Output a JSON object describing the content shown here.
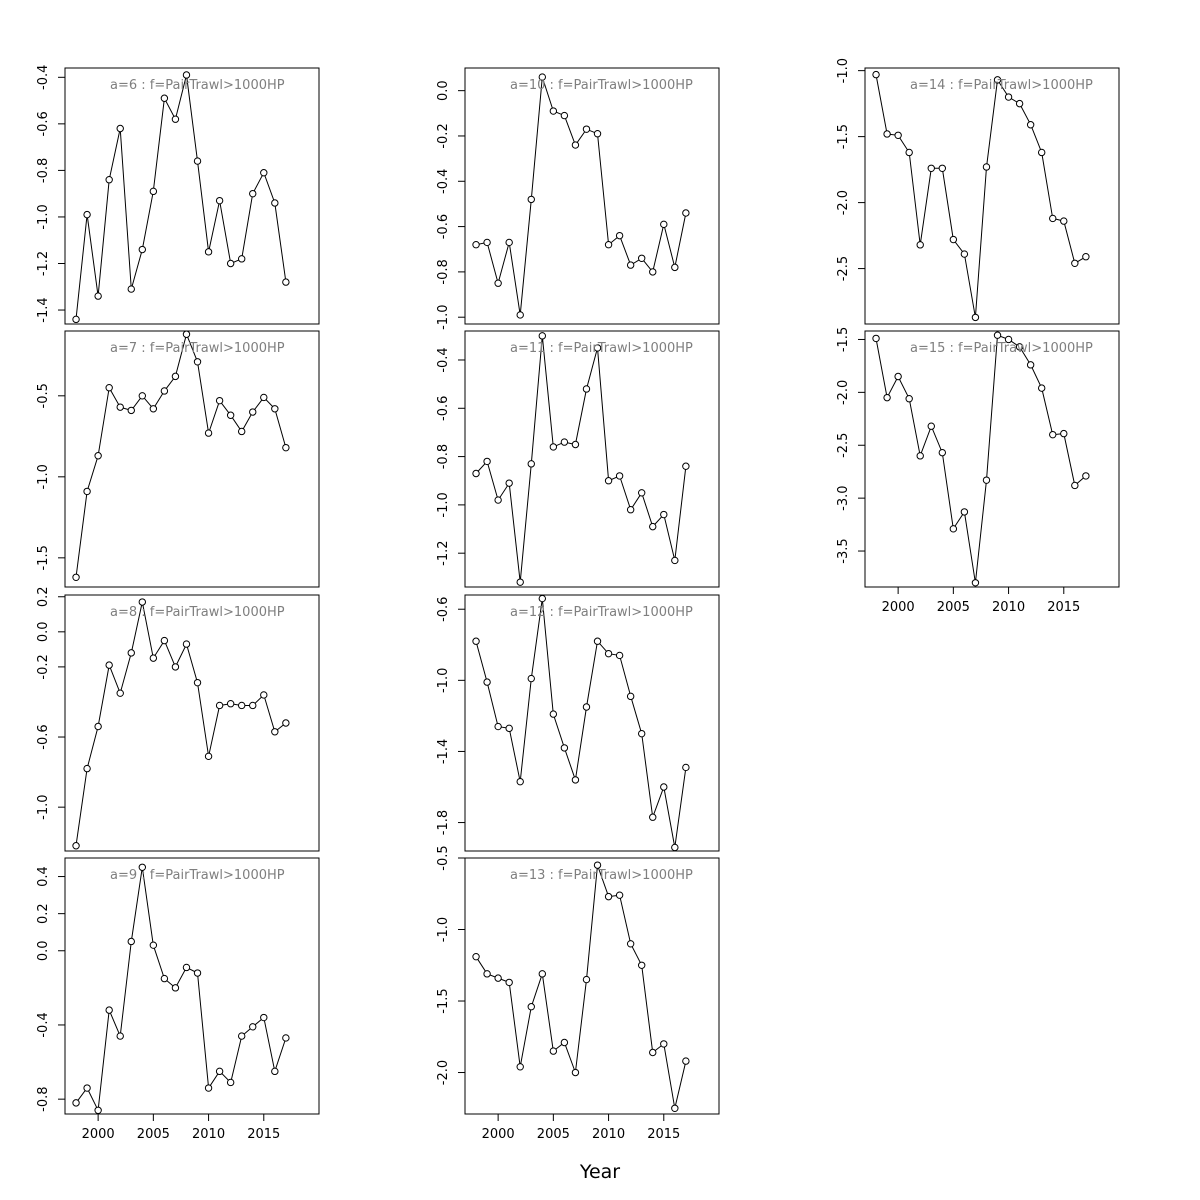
{
  "figure": {
    "xlabel": "Year"
  },
  "chart_data": [
    {
      "type": "line",
      "title": "a=6  :  f=PairTrawl>1000HP",
      "x": [
        1998,
        1999,
        2000,
        2001,
        2002,
        2003,
        2004,
        2005,
        2006,
        2007,
        2008,
        2009,
        2010,
        2011,
        2012,
        2013,
        2014,
        2015,
        2016,
        2017
      ],
      "y": [
        -1.44,
        -0.99,
        -1.34,
        -0.84,
        -0.62,
        -1.31,
        -1.14,
        -0.89,
        -0.49,
        -0.58,
        -0.39,
        -0.76,
        -1.15,
        -0.93,
        -1.2,
        -1.18,
        -0.9,
        -0.81,
        -0.94,
        -1.28
      ],
      "ylim": [
        -1.46,
        -0.36
      ],
      "yticks": [
        -1.4,
        -1.2,
        -1.0,
        -0.8,
        -0.6,
        -0.4
      ],
      "yticklabels": [
        "-1.4",
        "-1.2",
        "-1.0",
        "-0.8",
        "-0.6",
        "-0.4"
      ]
    },
    {
      "type": "line",
      "title": "a=7  :  f=PairTrawl>1000HP",
      "x": [
        1998,
        1999,
        2000,
        2001,
        2002,
        2003,
        2004,
        2005,
        2006,
        2007,
        2008,
        2009,
        2010,
        2011,
        2012,
        2013,
        2014,
        2015,
        2016,
        2017
      ],
      "y": [
        -1.62,
        -1.09,
        -0.87,
        -0.45,
        -0.57,
        -0.59,
        -0.5,
        -0.58,
        -0.47,
        -0.38,
        -0.12,
        -0.29,
        -0.73,
        -0.53,
        -0.62,
        -0.72,
        -0.6,
        -0.51,
        -0.58,
        -0.82
      ],
      "ylim": [
        -1.68,
        -0.1
      ],
      "yticks": [
        -1.5,
        -1.0,
        -0.5
      ],
      "yticklabels": [
        "-1.5",
        "-1.0",
        "-0.5"
      ]
    },
    {
      "type": "line",
      "title": "a=8  :  f=PairTrawl>1000HP",
      "x": [
        1998,
        1999,
        2000,
        2001,
        2002,
        2003,
        2004,
        2005,
        2006,
        2007,
        2008,
        2009,
        2010,
        2011,
        2012,
        2013,
        2014,
        2015,
        2016,
        2017
      ],
      "y": [
        -1.22,
        -0.78,
        -0.54,
        -0.19,
        -0.35,
        -0.12,
        0.17,
        -0.15,
        -0.05,
        -0.2,
        -0.07,
        -0.29,
        -0.71,
        -0.42,
        -0.41,
        -0.42,
        -0.42,
        -0.36,
        -0.57,
        -0.52
      ],
      "ylim": [
        -1.25,
        0.21
      ],
      "yticks": [
        -1.0,
        -0.6,
        -0.2,
        0.0,
        0.2
      ],
      "yticklabels": [
        "-1.0",
        "-0.6",
        "-0.2",
        "0.0",
        "0.2"
      ]
    },
    {
      "type": "line",
      "title": "a=9  :  f=PairTrawl>1000HP",
      "x": [
        1998,
        1999,
        2000,
        2001,
        2002,
        2003,
        2004,
        2005,
        2006,
        2007,
        2008,
        2009,
        2010,
        2011,
        2012,
        2013,
        2014,
        2015,
        2016,
        2017
      ],
      "y": [
        -0.82,
        -0.74,
        -0.86,
        -0.32,
        -0.46,
        0.05,
        0.45,
        0.03,
        -0.15,
        -0.2,
        -0.09,
        -0.12,
        -0.74,
        -0.65,
        -0.71,
        -0.46,
        -0.41,
        -0.36,
        -0.65,
        -0.47
      ],
      "ylim": [
        -0.88,
        0.5
      ],
      "yticks": [
        -0.8,
        -0.4,
        0.0,
        0.2,
        0.4
      ],
      "yticklabels": [
        "-0.8",
        "-0.4",
        "0.0",
        "0.2",
        "0.4"
      ]
    },
    {
      "type": "line",
      "title": "a=10  :  f=PairTrawl>1000HP",
      "x": [
        1998,
        1999,
        2000,
        2001,
        2002,
        2003,
        2004,
        2005,
        2006,
        2007,
        2008,
        2009,
        2010,
        2011,
        2012,
        2013,
        2014,
        2015,
        2016,
        2017
      ],
      "y": [
        -0.68,
        -0.67,
        -0.85,
        -0.67,
        -0.99,
        -0.48,
        0.06,
        -0.09,
        -0.11,
        -0.24,
        -0.17,
        -0.19,
        -0.68,
        -0.64,
        -0.77,
        -0.74,
        -0.8,
        -0.59,
        -0.78,
        -0.54
      ],
      "ylim": [
        -1.03,
        0.1
      ],
      "yticks": [
        -1.0,
        -0.8,
        -0.6,
        -0.4,
        -0.2,
        0.0
      ],
      "yticklabels": [
        "-1.0",
        "-0.8",
        "-0.6",
        "-0.4",
        "-0.2",
        "0.0"
      ]
    },
    {
      "type": "line",
      "title": "a=11  :  f=PairTrawl>1000HP",
      "x": [
        1998,
        1999,
        2000,
        2001,
        2002,
        2003,
        2004,
        2005,
        2006,
        2007,
        2008,
        2009,
        2010,
        2011,
        2012,
        2013,
        2014,
        2015,
        2016,
        2017
      ],
      "y": [
        -0.87,
        -0.82,
        -0.98,
        -0.91,
        -1.32,
        -0.83,
        -0.3,
        -0.76,
        -0.74,
        -0.75,
        -0.52,
        -0.35,
        -0.9,
        -0.88,
        -1.02,
        -0.95,
        -1.09,
        -1.04,
        -1.23,
        -0.84
      ],
      "ylim": [
        -1.34,
        -0.28
      ],
      "yticks": [
        -1.2,
        -1.0,
        -0.8,
        -0.6,
        -0.4
      ],
      "yticklabels": [
        "-1.2",
        "-1.0",
        "-0.8",
        "-0.6",
        "-0.4"
      ]
    },
    {
      "type": "line",
      "title": "a=12  :  f=PairTrawl>1000HP",
      "x": [
        1998,
        1999,
        2000,
        2001,
        2002,
        2003,
        2004,
        2005,
        2006,
        2007,
        2008,
        2009,
        2010,
        2011,
        2012,
        2013,
        2014,
        2015,
        2016,
        2017
      ],
      "y": [
        -0.78,
        -1.01,
        -1.26,
        -1.27,
        -1.57,
        -0.99,
        -0.54,
        -1.19,
        -1.38,
        -1.56,
        -1.15,
        -0.78,
        -0.85,
        -0.86,
        -1.09,
        -1.3,
        -1.77,
        -1.6,
        -1.94,
        -1.49
      ],
      "ylim": [
        -1.96,
        -0.52
      ],
      "yticks": [
        -1.8,
        -1.4,
        -1.0,
        -0.6
      ],
      "yticklabels": [
        "-1.8",
        "-1.4",
        "-1.0",
        "-0.6"
      ]
    },
    {
      "type": "line",
      "title": "a=13  :  f=PairTrawl>1000HP",
      "x": [
        1998,
        1999,
        2000,
        2001,
        2002,
        2003,
        2004,
        2005,
        2006,
        2007,
        2008,
        2009,
        2010,
        2011,
        2012,
        2013,
        2014,
        2015,
        2016,
        2017
      ],
      "y": [
        -1.19,
        -1.31,
        -1.34,
        -1.37,
        -1.96,
        -1.54,
        -1.31,
        -1.85,
        -1.79,
        -2.0,
        -1.35,
        -0.55,
        -0.77,
        -0.76,
        -1.1,
        -1.25,
        -1.86,
        -1.8,
        -2.25,
        -1.92
      ],
      "ylim": [
        -2.29,
        -0.5
      ],
      "yticks": [
        -2.0,
        -1.5,
        -1.0,
        -0.5
      ],
      "yticklabels": [
        "-2.0",
        "-1.5",
        "-1.0",
        "-0.5"
      ]
    },
    {
      "type": "line",
      "title": "a=14  :  f=PairTrawl>1000HP",
      "x": [
        1998,
        1999,
        2000,
        2001,
        2002,
        2003,
        2004,
        2005,
        2006,
        2007,
        2008,
        2009,
        2010,
        2011,
        2012,
        2013,
        2014,
        2015,
        2016,
        2017
      ],
      "y": [
        -1.03,
        -1.48,
        -1.49,
        -1.62,
        -2.32,
        -1.74,
        -1.74,
        -2.28,
        -2.39,
        -2.87,
        -1.73,
        -1.07,
        -1.2,
        -1.25,
        -1.41,
        -1.62,
        -2.12,
        -2.14,
        -2.46,
        -2.41
      ],
      "ylim": [
        -2.92,
        -0.98
      ],
      "yticks": [
        -2.5,
        -2.0,
        -1.5,
        -1.0
      ],
      "yticklabels": [
        "-2.5",
        "-2.0",
        "-1.5",
        "-1.0"
      ]
    },
    {
      "type": "line",
      "title": "a=15  :  f=PairTrawl>1000HP",
      "x": [
        1998,
        1999,
        2000,
        2001,
        2002,
        2003,
        2004,
        2005,
        2006,
        2007,
        2008,
        2009,
        2010,
        2011,
        2012,
        2013,
        2014,
        2015,
        2016,
        2017
      ],
      "y": [
        -1.49,
        -2.05,
        -1.85,
        -2.06,
        -2.6,
        -2.32,
        -2.57,
        -3.29,
        -3.13,
        -3.8,
        -2.83,
        -1.46,
        -1.5,
        -1.57,
        -1.74,
        -1.96,
        -2.4,
        -2.39,
        -2.88,
        -2.79
      ],
      "ylim": [
        -3.84,
        -1.42
      ],
      "yticks": [
        -3.5,
        -3.0,
        -2.5,
        -2.0,
        -1.5
      ],
      "yticklabels": [
        "-3.5",
        "-3.0",
        "-2.5",
        "-2.0",
        "-1.5"
      ]
    }
  ],
  "xaxis": {
    "xlim": [
      1997,
      2020
    ],
    "ticks": [
      2000,
      2005,
      2010,
      2015
    ],
    "ticklabels": [
      "2000",
      "2005",
      "2010",
      "2015"
    ]
  }
}
